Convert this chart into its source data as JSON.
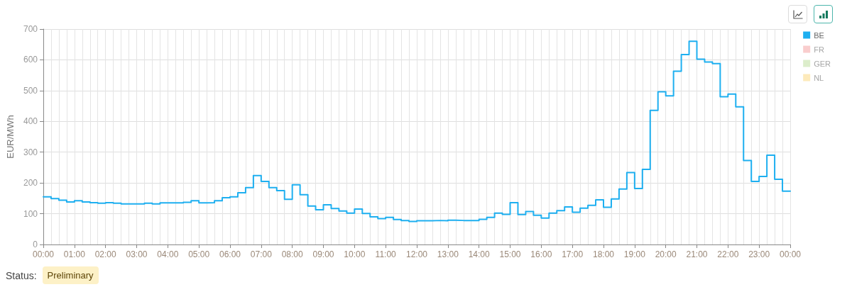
{
  "chart_data": {
    "type": "step",
    "ylabel": "EUR/MWh",
    "x": [
      0,
      0.25,
      0.5,
      0.75,
      1,
      1.25,
      1.5,
      1.75,
      2,
      2.25,
      2.5,
      2.75,
      3,
      3.25,
      3.5,
      3.75,
      4,
      4.25,
      4.5,
      4.75,
      5,
      5.25,
      5.5,
      5.75,
      6,
      6.25,
      6.5,
      6.75,
      7,
      7.25,
      7.5,
      7.75,
      8,
      8.25,
      8.5,
      8.75,
      9,
      9.25,
      9.5,
      9.75,
      10,
      10.25,
      10.5,
      10.75,
      11,
      11.25,
      11.5,
      11.75,
      12,
      12.25,
      12.5,
      12.75,
      13,
      13.25,
      13.5,
      13.75,
      14,
      14.25,
      14.5,
      14.75,
      15,
      15.25,
      15.5,
      15.75,
      16,
      16.25,
      16.5,
      16.75,
      17,
      17.25,
      17.5,
      17.75,
      18,
      18.25,
      18.5,
      18.75,
      19,
      19.25,
      19.5,
      19.75,
      20,
      20.25,
      20.5,
      20.75,
      21,
      21.25,
      21.5,
      21.75,
      22,
      22.25,
      22.5,
      22.75,
      23,
      23.25,
      23.5,
      23.75,
      24
    ],
    "xlim": [
      0,
      24
    ],
    "xticks": [
      {
        "value": 0,
        "label": "00:00"
      },
      {
        "value": 0.25,
        "label": null
      },
      {
        "value": 0.5,
        "label": null
      },
      {
        "value": 0.75,
        "label": null
      },
      {
        "value": 1,
        "label": "01:00"
      },
      {
        "value": 1.25,
        "label": null
      },
      {
        "value": 1.5,
        "label": null
      },
      {
        "value": 1.75,
        "label": null
      },
      {
        "value": 2,
        "label": "02:00"
      },
      {
        "value": 2.25,
        "label": null
      },
      {
        "value": 2.5,
        "label": null
      },
      {
        "value": 2.75,
        "label": null
      },
      {
        "value": 3,
        "label": "03:00"
      },
      {
        "value": 3.25,
        "label": null
      },
      {
        "value": 3.5,
        "label": null
      },
      {
        "value": 3.75,
        "label": null
      },
      {
        "value": 4,
        "label": "04:00"
      },
      {
        "value": 4.25,
        "label": null
      },
      {
        "value": 4.5,
        "label": null
      },
      {
        "value": 4.75,
        "label": null
      },
      {
        "value": 5,
        "label": "05:00"
      },
      {
        "value": 5.25,
        "label": null
      },
      {
        "value": 5.5,
        "label": null
      },
      {
        "value": 5.75,
        "label": null
      },
      {
        "value": 6,
        "label": "06:00"
      },
      {
        "value": 6.25,
        "label": null
      },
      {
        "value": 6.5,
        "label": null
      },
      {
        "value": 6.75,
        "label": null
      },
      {
        "value": 7,
        "label": "07:00"
      },
      {
        "value": 7.25,
        "label": null
      },
      {
        "value": 7.5,
        "label": null
      },
      {
        "value": 7.75,
        "label": null
      },
      {
        "value": 8,
        "label": "08:00"
      },
      {
        "value": 8.25,
        "label": null
      },
      {
        "value": 8.5,
        "label": null
      },
      {
        "value": 8.75,
        "label": null
      },
      {
        "value": 9,
        "label": "09:00"
      },
      {
        "value": 9.25,
        "label": null
      },
      {
        "value": 9.5,
        "label": null
      },
      {
        "value": 9.75,
        "label": null
      },
      {
        "value": 10,
        "label": "10:00"
      },
      {
        "value": 10.25,
        "label": null
      },
      {
        "value": 10.5,
        "label": null
      },
      {
        "value": 10.75,
        "label": null
      },
      {
        "value": 11,
        "label": "11:00"
      },
      {
        "value": 11.25,
        "label": null
      },
      {
        "value": 11.5,
        "label": null
      },
      {
        "value": 11.75,
        "label": null
      },
      {
        "value": 12,
        "label": "12:00"
      },
      {
        "value": 12.25,
        "label": null
      },
      {
        "value": 12.5,
        "label": null
      },
      {
        "value": 12.75,
        "label": null
      },
      {
        "value": 13,
        "label": "13:00"
      },
      {
        "value": 13.25,
        "label": null
      },
      {
        "value": 13.5,
        "label": null
      },
      {
        "value": 13.75,
        "label": null
      },
      {
        "value": 14,
        "label": "14:00"
      },
      {
        "value": 14.25,
        "label": null
      },
      {
        "value": 14.5,
        "label": null
      },
      {
        "value": 14.75,
        "label": null
      },
      {
        "value": 15,
        "label": "15:00"
      },
      {
        "value": 15.25,
        "label": null
      },
      {
        "value": 15.5,
        "label": null
      },
      {
        "value": 15.75,
        "label": null
      },
      {
        "value": 16,
        "label": "16:00"
      },
      {
        "value": 16.25,
        "label": null
      },
      {
        "value": 16.5,
        "label": null
      },
      {
        "value": 16.75,
        "label": null
      },
      {
        "value": 17,
        "label": "17:00"
      },
      {
        "value": 17.25,
        "label": null
      },
      {
        "value": 17.5,
        "label": null
      },
      {
        "value": 17.75,
        "label": null
      },
      {
        "value": 18,
        "label": "18:00"
      },
      {
        "value": 18.25,
        "label": null
      },
      {
        "value": 18.5,
        "label": null
      },
      {
        "value": 18.75,
        "label": null
      },
      {
        "value": 19,
        "label": "19:00"
      },
      {
        "value": 19.25,
        "label": null
      },
      {
        "value": 19.5,
        "label": null
      },
      {
        "value": 19.75,
        "label": null
      },
      {
        "value": 20,
        "label": "20:00"
      },
      {
        "value": 20.25,
        "label": null
      },
      {
        "value": 20.5,
        "label": null
      },
      {
        "value": 20.75,
        "label": null
      },
      {
        "value": 21,
        "label": "21:00"
      },
      {
        "value": 21.25,
        "label": null
      },
      {
        "value": 21.5,
        "label": null
      },
      {
        "value": 21.75,
        "label": null
      },
      {
        "value": 22,
        "label": "22:00"
      },
      {
        "value": 22.25,
        "label": null
      },
      {
        "value": 22.5,
        "label": null
      },
      {
        "value": 22.75,
        "label": null
      },
      {
        "value": 23,
        "label": "23:00"
      },
      {
        "value": 23.25,
        "label": null
      },
      {
        "value": 23.5,
        "label": null
      },
      {
        "value": 23.75,
        "label": null
      },
      {
        "value": 24,
        "label": "00:00"
      }
    ],
    "ylim": [
      0,
      700
    ],
    "yticks": [
      0,
      100,
      200,
      300,
      400,
      500,
      600,
      700
    ],
    "grid": true,
    "legend": "top right",
    "series": [
      {
        "name": "BE",
        "color": "#1eaff0",
        "values": [
          155,
          149,
          144,
          138,
          142,
          138,
          136,
          134,
          136,
          134,
          132,
          132,
          132,
          134,
          132,
          135,
          135,
          135,
          137,
          142,
          135,
          136,
          142,
          152,
          155,
          168,
          185,
          224,
          205,
          185,
          175,
          147,
          194,
          162,
          125,
          113,
          129,
          117,
          109,
          102,
          115,
          101,
          90,
          84,
          88,
          81,
          78,
          75,
          77,
          77,
          78,
          77,
          79,
          78,
          78,
          78,
          82,
          88,
          102,
          98,
          136,
          97,
          107,
          95,
          86,
          102,
          110,
          122,
          105,
          118,
          127,
          145,
          121,
          148,
          180,
          234,
          182,
          244,
          436,
          496,
          483,
          563,
          617,
          660,
          602,
          593,
          588,
          480,
          489,
          447,
          273,
          205,
          221,
          290,
          212,
          173,
          173
        ]
      },
      {
        "name": "FR",
        "color": "#f9cdcd",
        "values": [
          null,
          null,
          null,
          null,
          null,
          null,
          null,
          null,
          null,
          null,
          null,
          null,
          null,
          null,
          null,
          null,
          null,
          null,
          null,
          null,
          null,
          null,
          null,
          null,
          null,
          null,
          null,
          null,
          null,
          null,
          null,
          null,
          null,
          null,
          null,
          null,
          null,
          null,
          null,
          null,
          null,
          null,
          null,
          null,
          null,
          null,
          null,
          null,
          null,
          null,
          null,
          null,
          null,
          null,
          null,
          null,
          null,
          null,
          null,
          null,
          null,
          null,
          null,
          null,
          null,
          null,
          null,
          null,
          null,
          null,
          null,
          null,
          null,
          null,
          null,
          null,
          null,
          null,
          null,
          null,
          null,
          null,
          null,
          null,
          null,
          null,
          null,
          null,
          null,
          null,
          null,
          null,
          null,
          null,
          null,
          null,
          null
        ]
      },
      {
        "name": "GER",
        "color": "#dcedcb",
        "values": [
          null,
          null,
          null,
          null,
          null,
          null,
          null,
          null,
          null,
          null,
          null,
          null,
          null,
          null,
          null,
          null,
          null,
          null,
          null,
          null,
          null,
          null,
          null,
          null,
          null,
          null,
          null,
          null,
          null,
          null,
          null,
          null,
          null,
          null,
          null,
          null,
          null,
          null,
          null,
          null,
          null,
          null,
          null,
          null,
          null,
          null,
          null,
          null,
          null,
          null,
          null,
          null,
          null,
          null,
          null,
          null,
          null,
          null,
          null,
          null,
          null,
          null,
          null,
          null,
          null,
          null,
          null,
          null,
          null,
          null,
          null,
          null,
          null,
          null,
          null,
          null,
          null,
          null,
          null,
          null,
          null,
          null,
          null,
          null,
          null,
          null,
          null,
          null,
          null,
          null,
          null,
          null,
          null,
          null,
          null,
          null,
          null
        ]
      },
      {
        "name": "NL",
        "color": "#fdeabb",
        "values": [
          null,
          null,
          null,
          null,
          null,
          null,
          null,
          null,
          null,
          null,
          null,
          null,
          null,
          null,
          null,
          null,
          null,
          null,
          null,
          null,
          null,
          null,
          null,
          null,
          null,
          null,
          null,
          null,
          null,
          null,
          null,
          null,
          null,
          null,
          null,
          null,
          null,
          null,
          null,
          null,
          null,
          null,
          null,
          null,
          null,
          null,
          null,
          null,
          null,
          null,
          null,
          null,
          null,
          null,
          null,
          null,
          null,
          null,
          null,
          null,
          null,
          null,
          null,
          null,
          null,
          null,
          null,
          null,
          null,
          null,
          null,
          null,
          null,
          null,
          null,
          null,
          null,
          null,
          null,
          null,
          null,
          null,
          null,
          null,
          null,
          null,
          null,
          null,
          null,
          null,
          null,
          null,
          null,
          null,
          null,
          null,
          null
        ]
      }
    ],
    "annotations": [
      "Status:",
      "Preliminary"
    ]
  }
}
